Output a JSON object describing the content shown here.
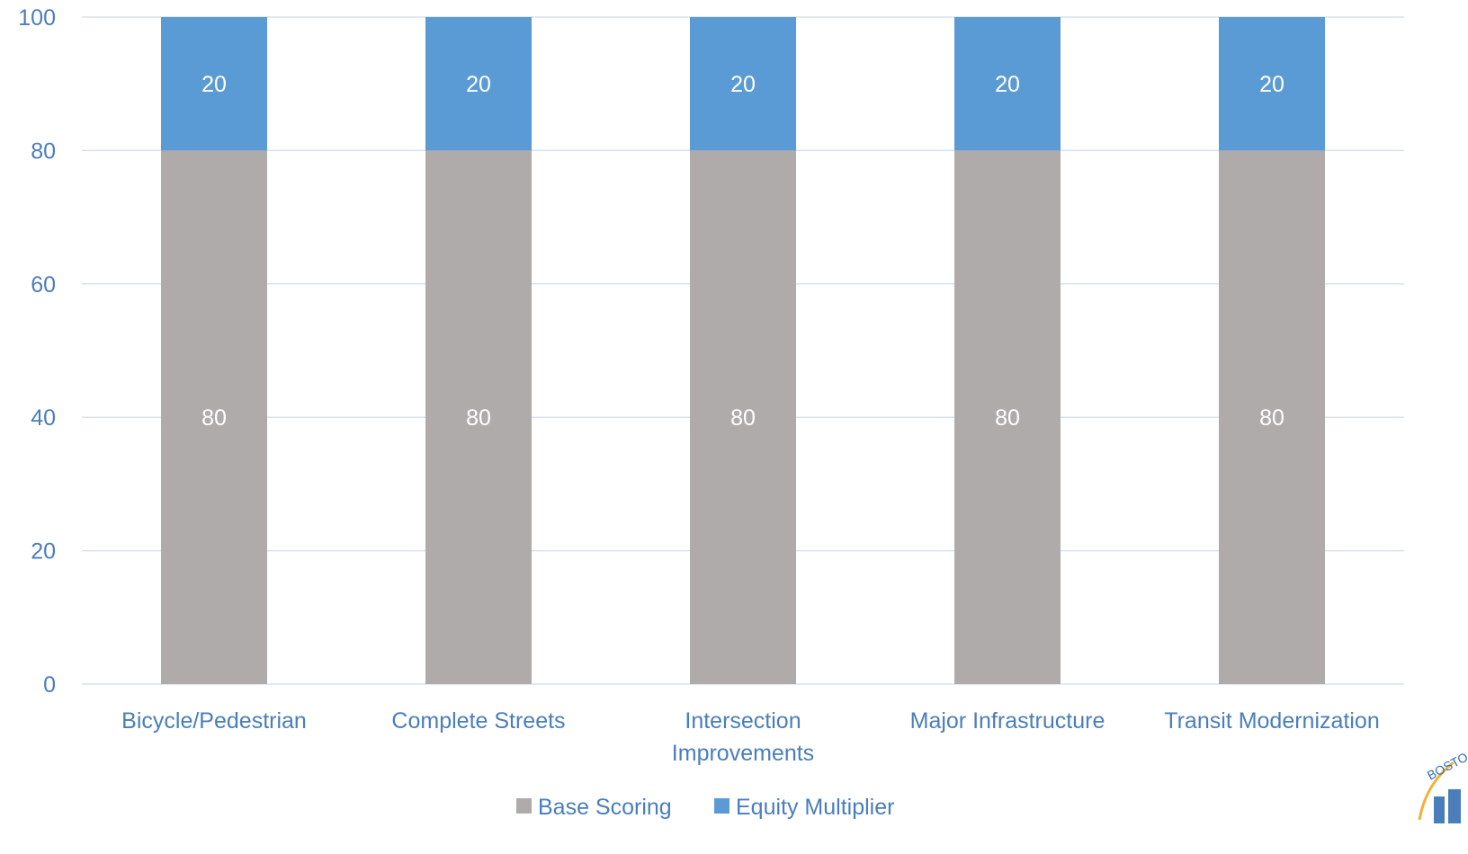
{
  "chart_data": {
    "type": "bar",
    "stacked": true,
    "categories": [
      [
        "Bicycle/Pedestrian"
      ],
      [
        "Complete Streets"
      ],
      [
        "Intersection",
        "Improvements"
      ],
      [
        "Major Infrastructure"
      ],
      [
        "Transit Modernization"
      ]
    ],
    "series": [
      {
        "name": "Base Scoring",
        "values": [
          80,
          80,
          80,
          80,
          80
        ],
        "color": "#afabab"
      },
      {
        "name": "Equity Multiplier",
        "values": [
          20,
          20,
          20,
          20,
          20
        ],
        "color": "#5b9bd5"
      }
    ],
    "title": "",
    "xlabel": "",
    "ylabel": "",
    "ylim": [
      0,
      100
    ],
    "yticks": [
      0,
      20,
      40,
      60,
      80,
      100
    ],
    "grid": true,
    "legend_position": "bottom",
    "colors": {
      "axis_text": "#4a7ebb",
      "gridline": "#d9e2ef",
      "data_label": "#ffffff"
    }
  },
  "logo": {
    "text": "BOSTO"
  }
}
